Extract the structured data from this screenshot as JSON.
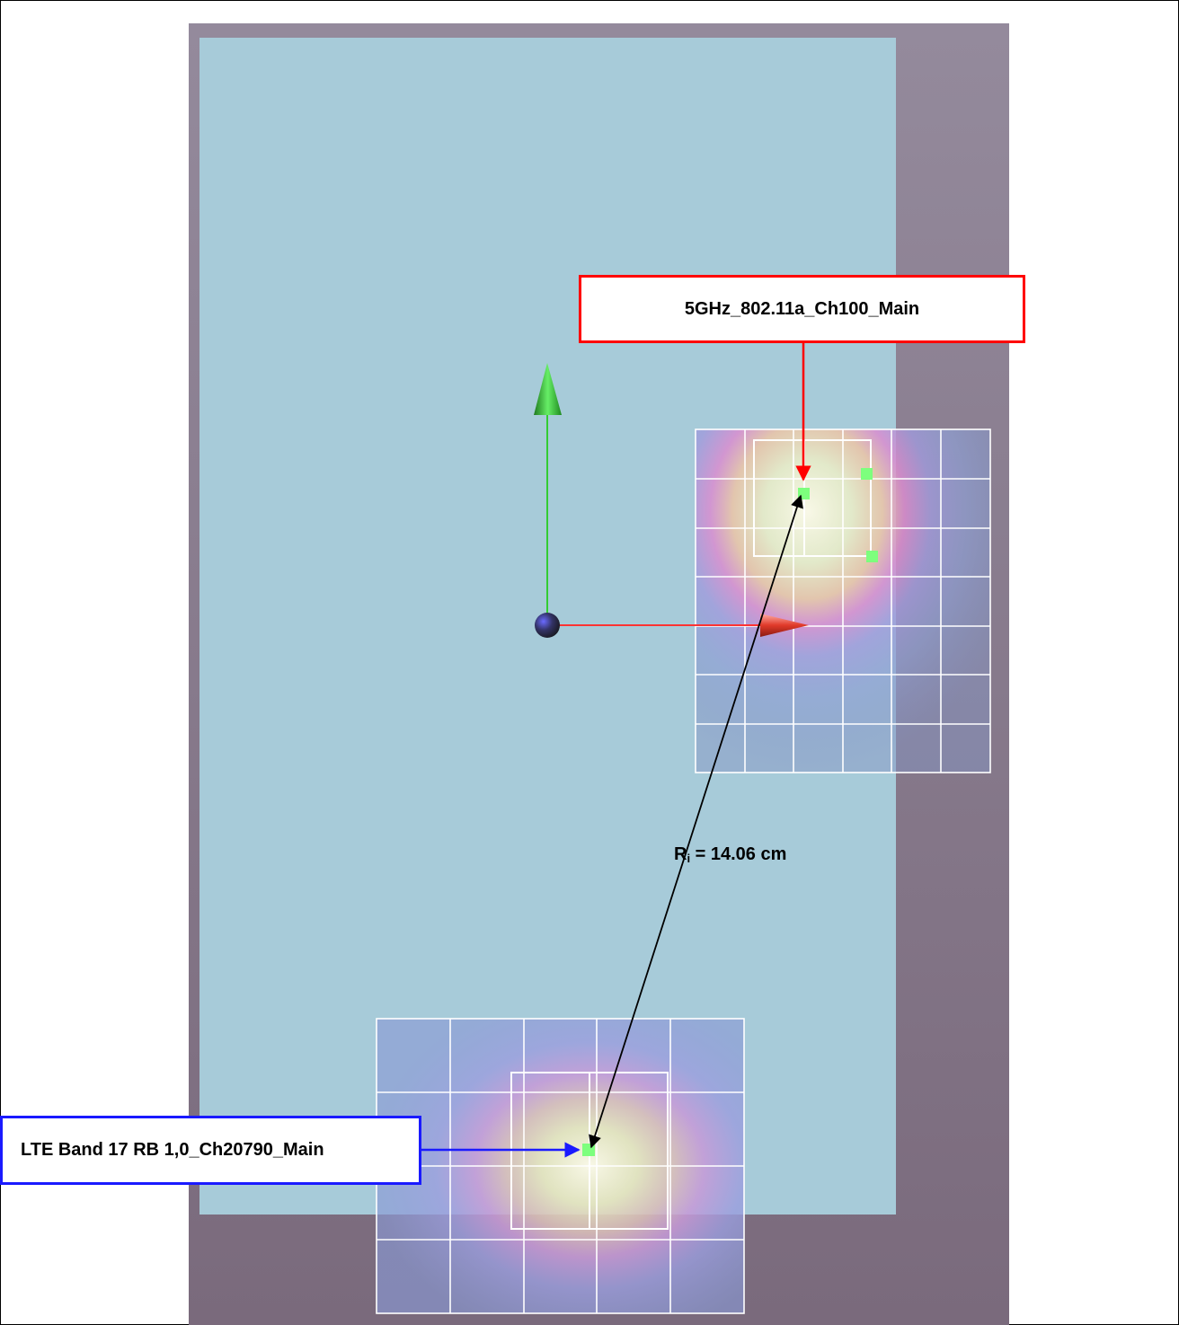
{
  "labels": {
    "top_antenna": "5GHz_802.11a_Ch100_Main",
    "bottom_antenna": "LTE Band 17 RB 1,0_Ch20790_Main",
    "distance_prefix": "R",
    "distance_sub": "i",
    "distance_value": " = 14.06 cm"
  },
  "colors": {
    "phantom_background": "#86788a",
    "device_surface": "#a7cbd9",
    "top_label_border": "#ff0000",
    "bottom_label_border": "#1a1aff",
    "axis_x": "#ff3333",
    "axis_y": "#33cc33",
    "measurement_point": "#7dff7d"
  },
  "icons": {
    "origin": "origin-sphere-icon",
    "x_axis_arrow": "x-axis-arrow-icon",
    "y_axis_arrow": "y-axis-arrow-icon"
  }
}
